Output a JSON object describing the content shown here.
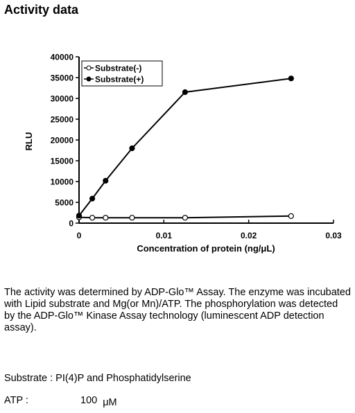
{
  "heading": "Activity data",
  "description": "The activity was determined by ADP-Glo™ Assay. The enzyme was incubated with Lipid substrate and Mg(or Mn)/ATP. The phosphorylation was detected by the ADP-Glo™ Kinase Assay technology (luminescent ADP detection assay).",
  "details": {
    "substrate": "Substrate : PI(4)P and Phosphatidylserine",
    "atp_label": "ATP :",
    "atp_value": "100",
    "atp_unit": "μM"
  },
  "chart_data": {
    "type": "line",
    "title": "",
    "xlabel": "Concentration of protein (ng/μL)",
    "ylabel": "RLU",
    "xlim": [
      0,
      0.03
    ],
    "ylim": [
      0,
      40000
    ],
    "xticks": [
      0,
      0.01,
      0.02,
      0.03
    ],
    "xtick_labels": [
      "0",
      "0.01",
      "0.02",
      "0.03"
    ],
    "yticks": [
      0,
      5000,
      10000,
      15000,
      20000,
      25000,
      30000,
      35000,
      40000
    ],
    "ytick_labels": [
      "0",
      "5000",
      "10000",
      "15000",
      "20000",
      "25000",
      "30000",
      "35000",
      "40000"
    ],
    "grid": false,
    "legend_position": "top-left",
    "series": [
      {
        "name": "Substrate(-)",
        "marker": "open-circle",
        "x": [
          0,
          0.00156,
          0.00313,
          0.00625,
          0.0125,
          0.025
        ],
        "y": [
          1400,
          1300,
          1300,
          1300,
          1300,
          1700
        ]
      },
      {
        "name": "Substrate(+)",
        "marker": "filled-circle",
        "x": [
          0,
          0.00156,
          0.00313,
          0.00625,
          0.0125,
          0.025
        ],
        "y": [
          1800,
          5900,
          10200,
          18000,
          31500,
          34800
        ]
      }
    ]
  }
}
